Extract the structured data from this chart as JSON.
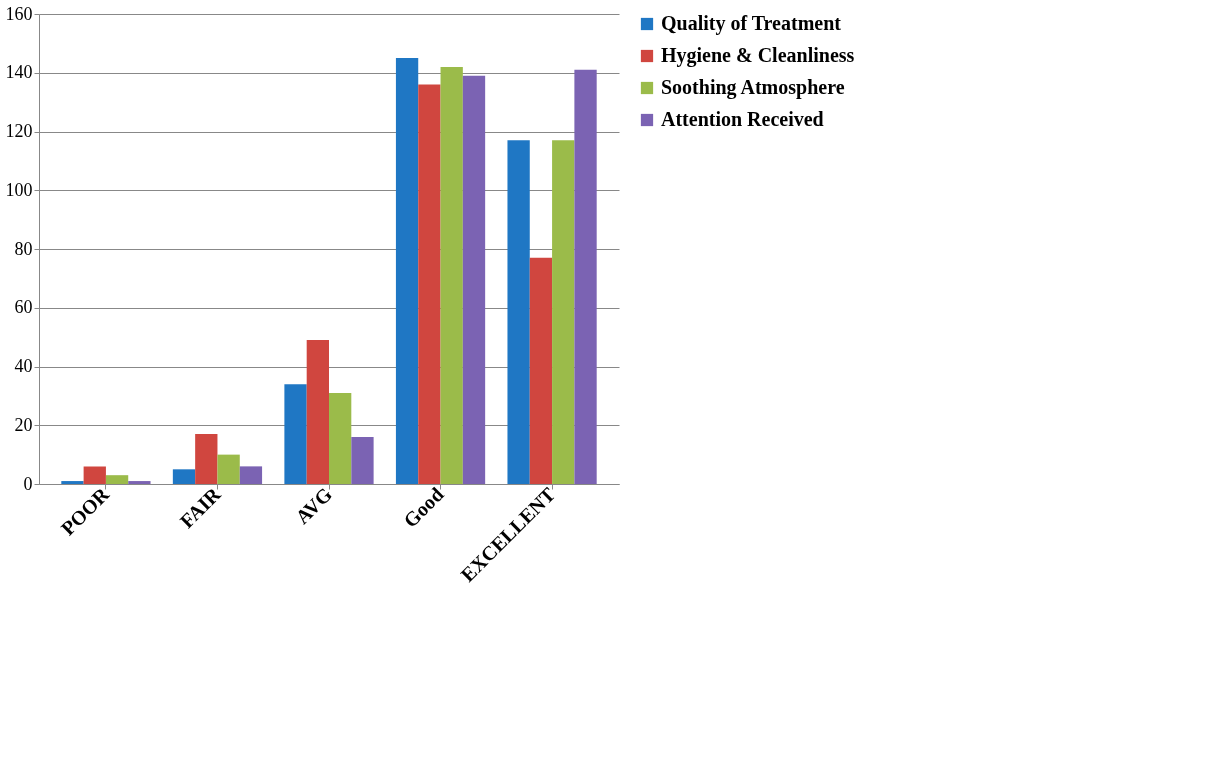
{
  "chart_data": {
    "type": "bar",
    "categories": [
      "POOR",
      "FAIR",
      "AVG",
      "Good",
      "EXCELLENT"
    ],
    "series": [
      {
        "name": "Quality of Treatment",
        "color": "#1f77c4",
        "values": [
          1,
          5,
          34,
          145,
          117
        ]
      },
      {
        "name": "Hygiene & Cleanliness",
        "color": "#d0463f",
        "values": [
          6,
          17,
          49,
          136,
          77
        ]
      },
      {
        "name": "Soothing Atmosphere",
        "color": "#9bbb4a",
        "values": [
          3,
          10,
          31,
          142,
          117
        ]
      },
      {
        "name": "Attention Received",
        "color": "#7b63b3",
        "values": [
          1,
          6,
          16,
          139,
          141
        ]
      }
    ],
    "ylim": [
      0,
      160
    ],
    "yticks": [
      0,
      20,
      40,
      60,
      80,
      100,
      120,
      140,
      160
    ],
    "grid": "y",
    "legend": "right"
  }
}
